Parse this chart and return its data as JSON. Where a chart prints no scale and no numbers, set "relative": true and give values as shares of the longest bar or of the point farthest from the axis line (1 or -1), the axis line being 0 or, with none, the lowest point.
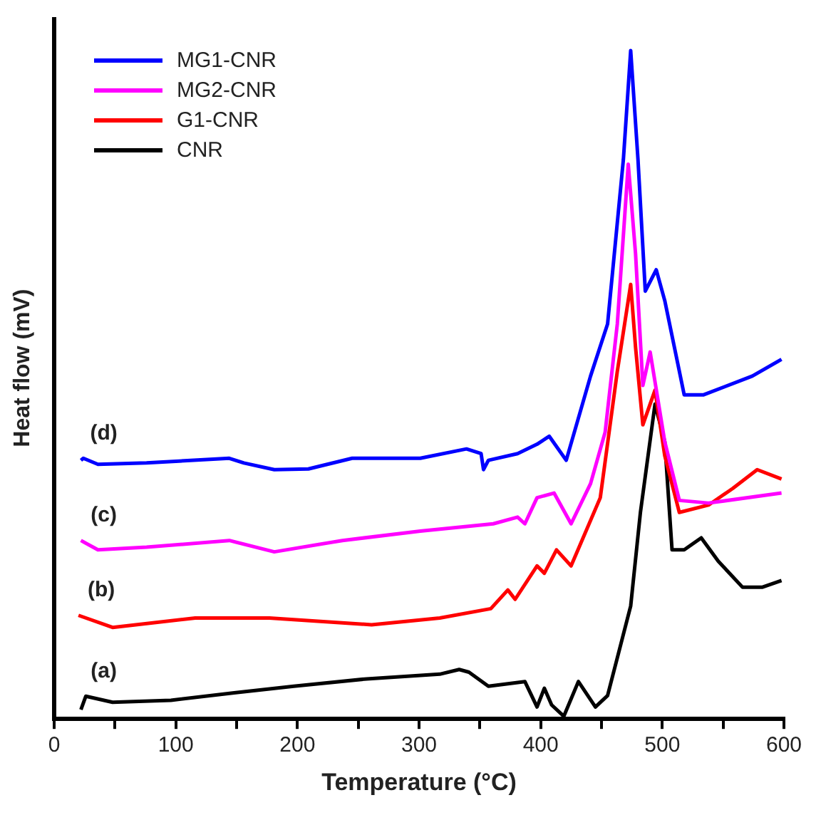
{
  "chart_data": {
    "type": "line",
    "relative": true,
    "xlabel": "Temperature (°C)",
    "ylabel": "Heat flow (mV)",
    "xlim": [
      0,
      600
    ],
    "xticks": [
      0,
      {
        "value": 50,
        "label": null
      },
      100,
      {
        "value": 150,
        "label": null
      },
      200,
      {
        "value": 250,
        "label": null
      },
      300,
      {
        "value": 350,
        "label": null
      },
      400,
      {
        "value": 450,
        "label": null
      },
      500,
      {
        "value": 550,
        "label": null
      },
      600
    ],
    "grid": false,
    "legend": "top left",
    "marker": "none",
    "line_style": "solid",
    "series": [
      {
        "name": "MG1-CNR",
        "color": "#0000ff",
        "x": [
          22,
          24,
          36,
          76,
          144,
          156,
          181,
          209,
          245,
          301,
          339,
          351,
          353,
          357,
          381,
          397,
          407,
          421,
          441,
          455,
          468,
          474,
          480,
          486,
          495,
          502,
          518,
          534,
          574,
          598
        ],
        "values": [
          0.387,
          0.39,
          0.381,
          0.383,
          0.39,
          0.383,
          0.373,
          0.374,
          0.39,
          0.39,
          0.404,
          0.397,
          0.373,
          0.387,
          0.397,
          0.411,
          0.423,
          0.387,
          0.513,
          0.591,
          0.837,
          1,
          0.837,
          0.64,
          0.672,
          0.626,
          0.485,
          0.485,
          0.513,
          0.538
        ]
      },
      {
        "name": "MG2-CNR",
        "color": "#ff00ff",
        "x": [
          22,
          36,
          76,
          144,
          181,
          237,
          301,
          361,
          381,
          387,
          397,
          411,
          425,
          441,
          453,
          463,
          472,
          478,
          484,
          490,
          502,
          514,
          538,
          598
        ],
        "values": [
          0.267,
          0.253,
          0.257,
          0.267,
          0.25,
          0.267,
          0.281,
          0.292,
          0.302,
          0.292,
          0.331,
          0.338,
          0.292,
          0.352,
          0.429,
          0.591,
          0.83,
          0.696,
          0.499,
          0.549,
          0.415,
          0.327,
          0.323,
          0.338
        ]
      },
      {
        "name": "G1-CNR",
        "color": "#ff0000",
        "x": [
          20,
          48,
          116,
          177,
          261,
          317,
          359,
          373,
          379,
          397,
          403,
          413,
          425,
          449,
          463,
          474,
          478,
          484,
          494,
          502,
          514,
          538,
          558,
          578,
          598
        ],
        "values": [
          0.155,
          0.137,
          0.151,
          0.151,
          0.141,
          0.151,
          0.165,
          0.193,
          0.179,
          0.229,
          0.218,
          0.253,
          0.229,
          0.331,
          0.52,
          0.65,
          0.556,
          0.44,
          0.492,
          0.394,
          0.309,
          0.32,
          0.345,
          0.373,
          0.359
        ]
      },
      {
        "name": "CNR",
        "color": "#000000",
        "x": [
          22,
          26,
          48,
          96,
          148,
          197,
          257,
          317,
          333,
          341,
          357,
          387,
          397,
          403,
          409,
          419,
          431,
          445,
          455,
          474,
          482,
          494,
          502,
          508,
          518,
          532,
          546,
          566,
          582,
          598
        ],
        "values": [
          0.014,
          0.034,
          0.025,
          0.028,
          0.039,
          0.049,
          0.06,
          0.067,
          0.074,
          0.07,
          0.049,
          0.056,
          0.018,
          0.046,
          0.021,
          0.004,
          0.056,
          0.018,
          0.035,
          0.169,
          0.309,
          0.471,
          0.415,
          0.253,
          0.253,
          0.271,
          0.236,
          0.197,
          0.197,
          0.207
        ]
      }
    ],
    "annotations": [
      "(d)",
      "(c)",
      "(b)",
      "(a)"
    ]
  }
}
